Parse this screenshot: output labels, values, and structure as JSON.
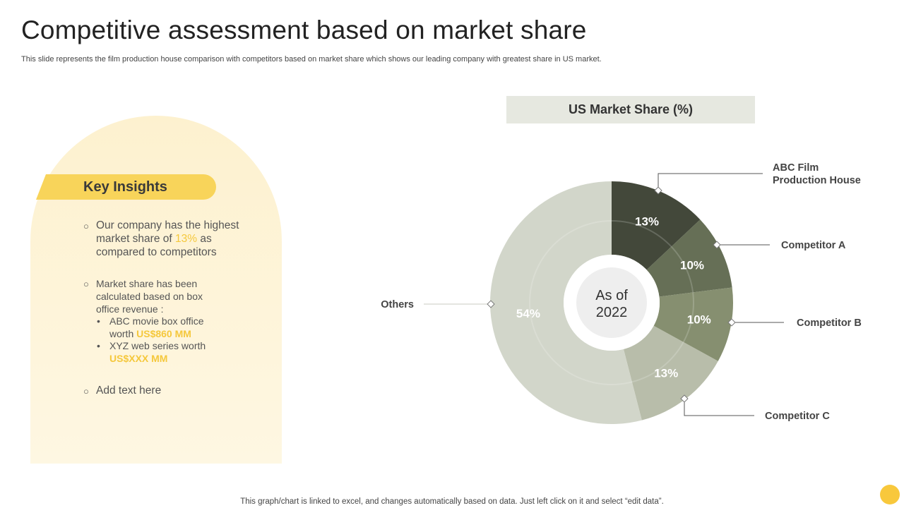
{
  "slide": {
    "title": "Competitive assessment based on market share",
    "subtitle": "This slide represents the film production house comparison with competitors based on market share which shows our leading company with greatest share in US market.",
    "footer": "This graph/chart is linked to excel, and changes automatically based on data. Just left click on it and select “edit data”."
  },
  "insights": {
    "heading": "Key Insights",
    "b1_pre": "Our company has the highest market share of ",
    "b1_hl": "13%",
    "b1_post": " as compared to competitors",
    "b2_text": "Market share has been calculated based on box office revenue :",
    "b2_sub1_pre": "ABC movie box office worth ",
    "b2_sub1_hl": "US$860 MM",
    "b2_sub2_pre": "XYZ  web series worth",
    "b2_sub2_hl": "US$XXX MM",
    "b3": "Add text here"
  },
  "chart_data": {
    "type": "pie",
    "title": "US Market Share (%)",
    "center_label_line1": "As of",
    "center_label_line2": "2022",
    "categories": [
      "ABC Film Production House",
      "Competitor A",
      "Competitor B",
      "Competitor C",
      "Others"
    ],
    "values": [
      13,
      10,
      10,
      13,
      54
    ],
    "value_labels": [
      "13%",
      "10%",
      "10%",
      "13%",
      "54%"
    ],
    "colors": [
      "#43483a",
      "#666f56",
      "#868f70",
      "#b8bdaa",
      "#d2d6ca"
    ],
    "label_lines": [
      [
        "ABC Film",
        "Production House"
      ],
      [
        "Competitor A"
      ],
      [
        "Competitor B"
      ],
      [
        "Competitor C"
      ],
      [
        "Others"
      ]
    ]
  },
  "colors": {
    "accent": "#f8d45a",
    "highlight": "#f5c83c",
    "panel": "#fef4d9"
  }
}
